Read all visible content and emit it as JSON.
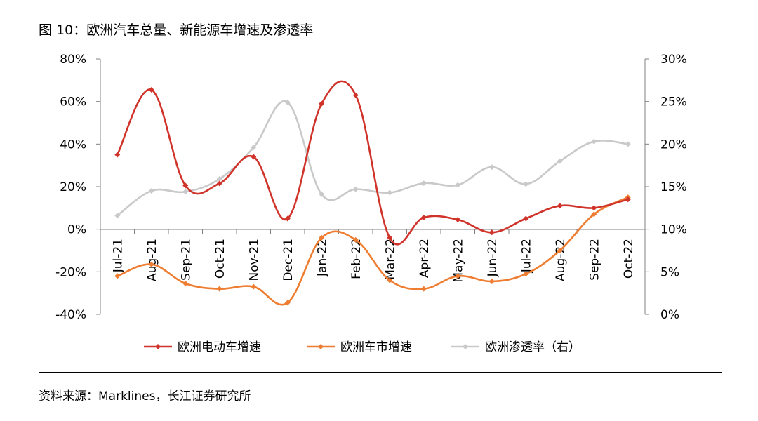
{
  "figure": {
    "title": "图 10：欧洲汽车总量、新能源车增速及渗透率",
    "source": "资料来源：Marklines，长江证券研究所"
  },
  "chart_data": {
    "type": "line",
    "categories": [
      "Jul-21",
      "Aug-21",
      "Sep-21",
      "Oct-21",
      "Nov-21",
      "Dec-21",
      "Jan-22",
      "Feb-22",
      "Mar-22",
      "Apr-22",
      "May-22",
      "Jun-22",
      "Jul-22",
      "Aug-22",
      "Sep-22",
      "Oct-22"
    ],
    "y_left": {
      "ylim": [
        -40,
        80
      ],
      "ticks": [
        80,
        60,
        40,
        20,
        0,
        -20,
        -40
      ],
      "tick_labels": [
        "80%",
        "60%",
        "40%",
        "20%",
        "0%",
        "-20%",
        "-40%"
      ]
    },
    "y_right": {
      "ylim": [
        0,
        30
      ],
      "ticks": [
        30,
        25,
        20,
        15,
        10,
        5,
        0
      ],
      "tick_labels": [
        "30%",
        "25%",
        "20%",
        "15%",
        "10%",
        "5%",
        "0%"
      ]
    },
    "grid": false,
    "legend_position": "bottom",
    "series": [
      {
        "name": "欧洲电动车增速",
        "axis": "left",
        "color": "#D0332A",
        "values": [
          35,
          65.5,
          20.5,
          21.5,
          34,
          5,
          59,
          63,
          -4,
          5.5,
          4.5,
          -1.5,
          5,
          11,
          10,
          14
        ]
      },
      {
        "name": "欧洲车市增速",
        "axis": "left",
        "color": "#EE7D31",
        "values": [
          -22,
          -16.5,
          -25.5,
          -28,
          -27,
          -34.5,
          -4,
          -5,
          -24,
          -28,
          -22,
          -24.5,
          -21,
          -10,
          7,
          15
        ]
      },
      {
        "name": "欧洲渗透率（右）",
        "axis": "right",
        "color": "#C9C9C9",
        "values": [
          11.6,
          14.5,
          14.4,
          15.9,
          19.6,
          24.9,
          14.1,
          14.7,
          14.3,
          15.4,
          15.2,
          17.3,
          15.3,
          18,
          20.3,
          20
        ]
      }
    ]
  }
}
